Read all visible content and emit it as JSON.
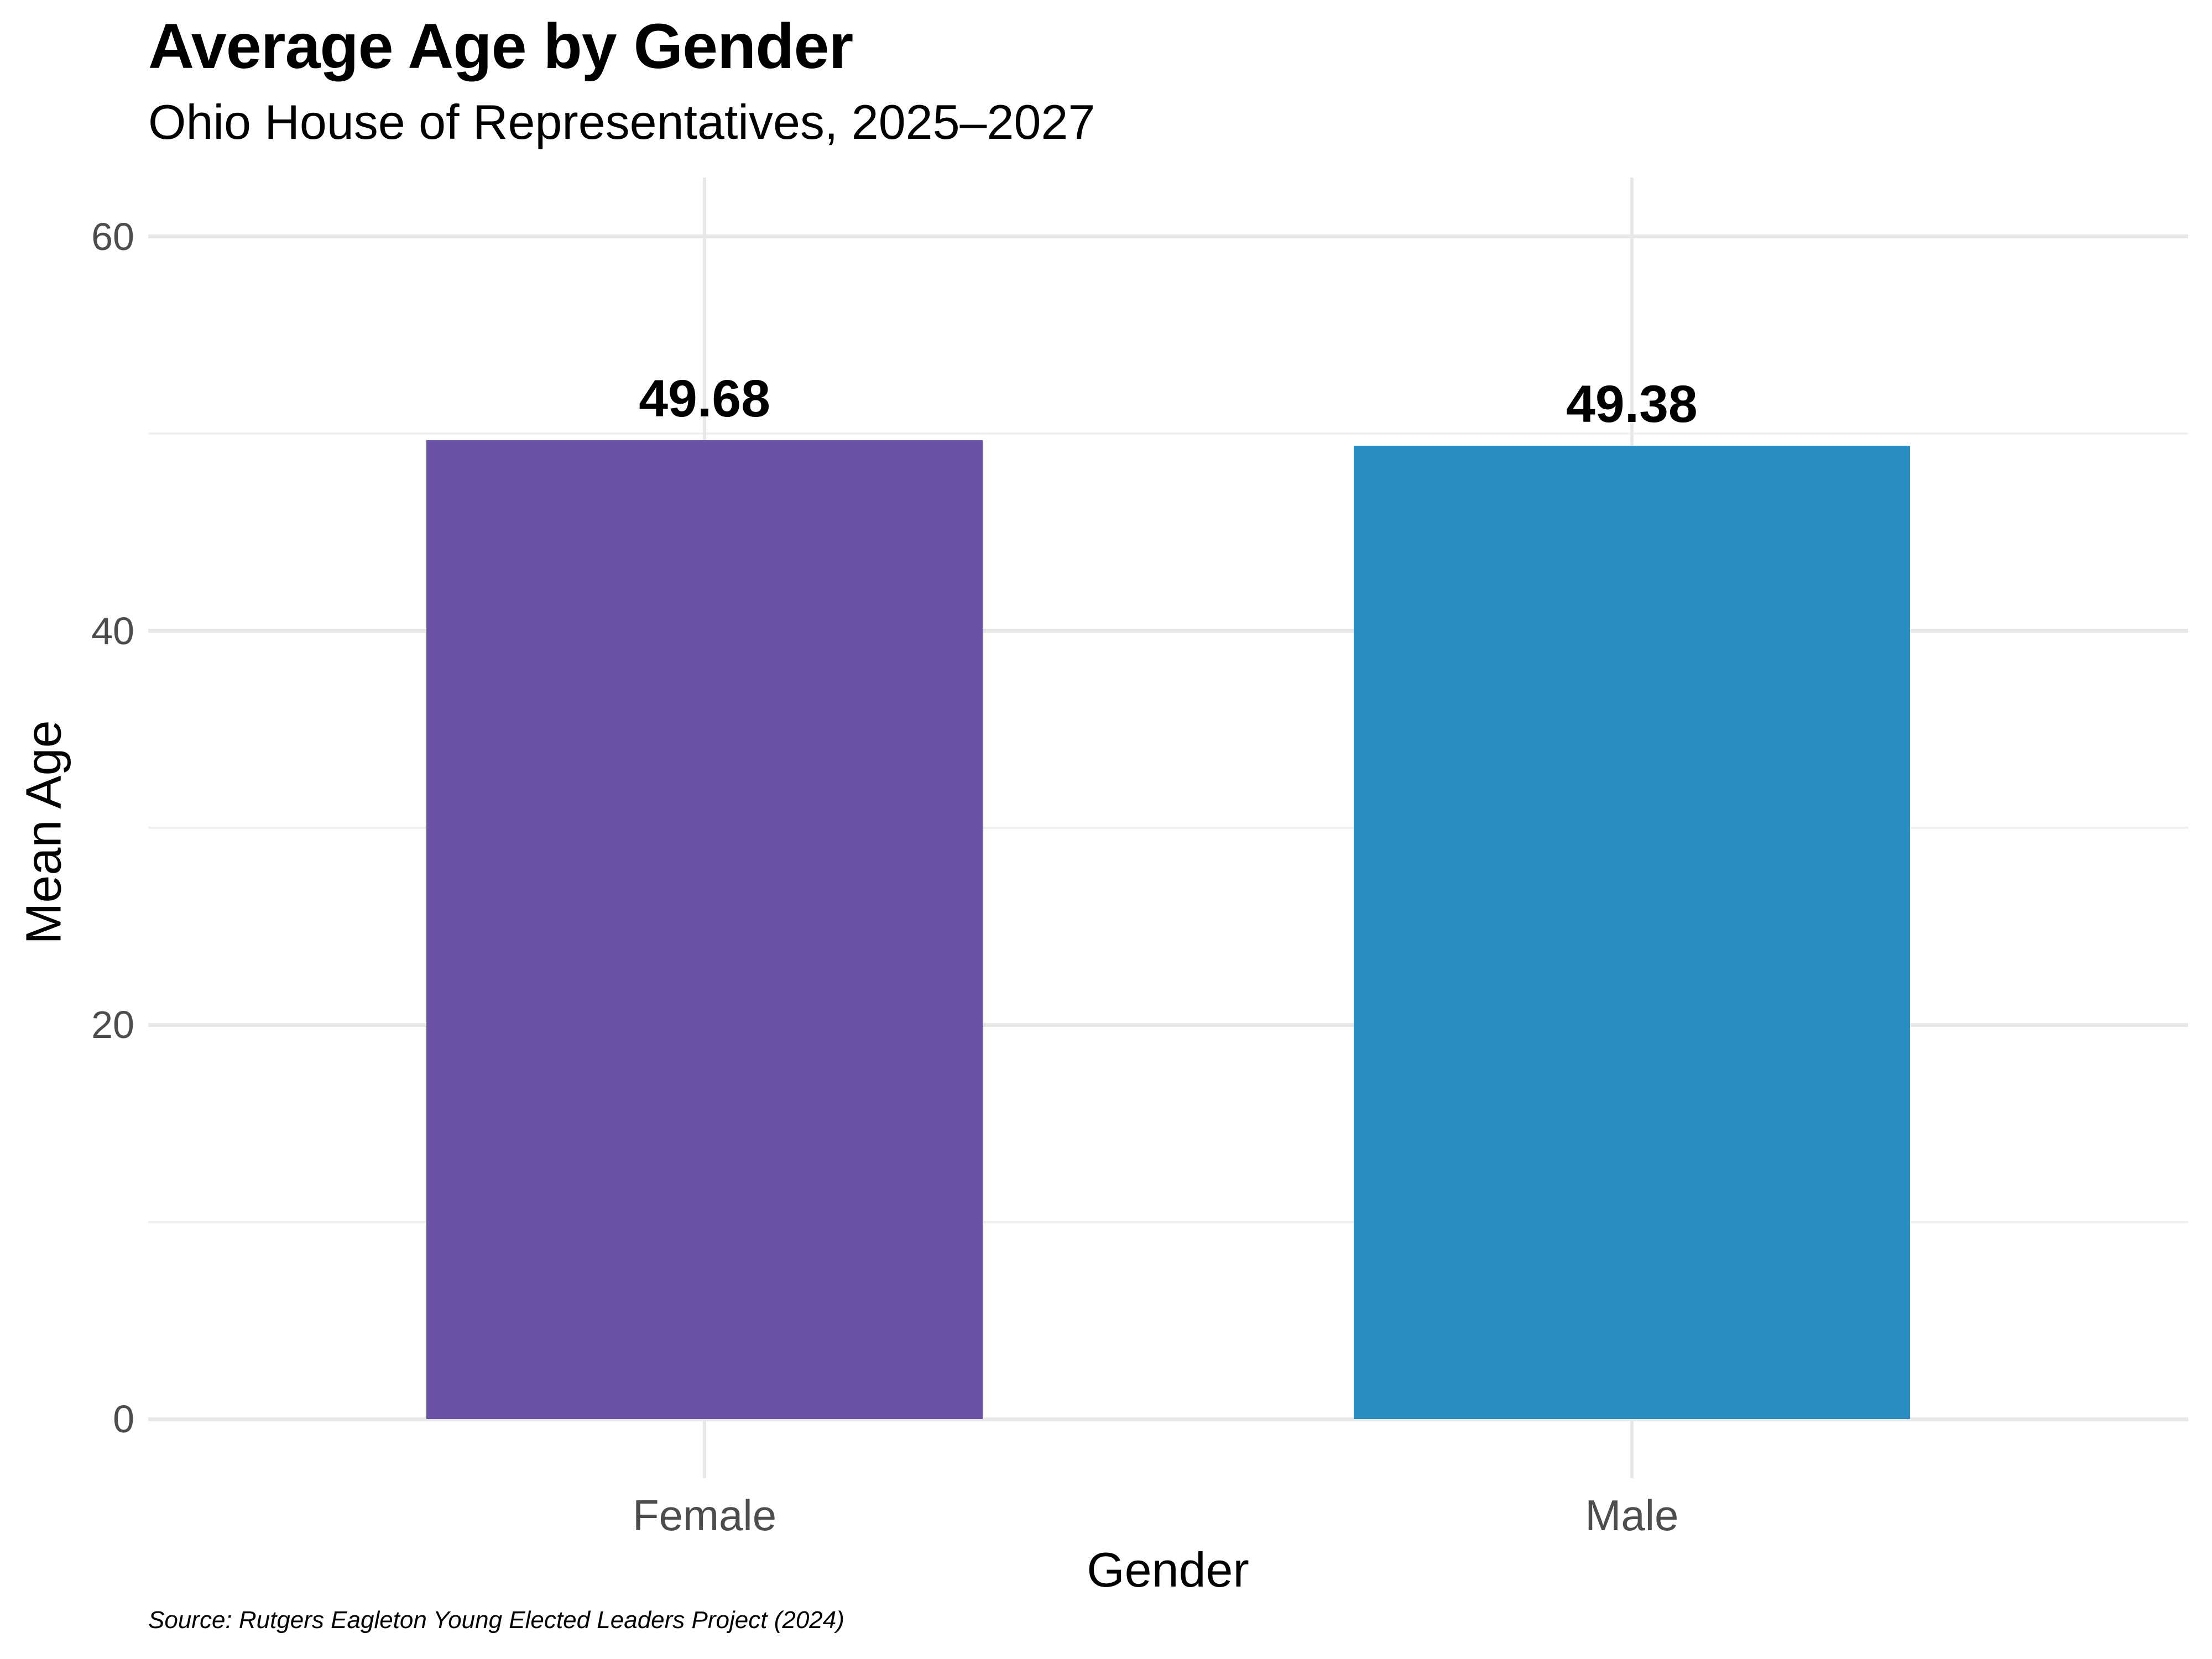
{
  "chart_data": {
    "type": "bar",
    "title": "Average Age by Gender",
    "subtitle": "Ohio House of Representatives, 2025–2027",
    "xlabel": "Gender",
    "ylabel": "Mean Age",
    "caption": "Source: Rutgers Eagleton Young Elected Leaders Project (2024)",
    "categories": [
      "Female",
      "Male"
    ],
    "values": [
      49.68,
      49.38
    ],
    "value_labels": [
      "49.68",
      "49.38"
    ],
    "series": [
      {
        "name": "Mean Age",
        "values": [
          49.68,
          49.38
        ]
      }
    ],
    "bar_colors": [
      "#6a52a8",
      "#2b8dc1"
    ],
    "ylim": [
      0,
      60
    ],
    "yticks": [
      0,
      20,
      40,
      60
    ],
    "yticks_minor": [
      10,
      30,
      50
    ],
    "grid": {
      "horizontal_major": true,
      "horizontal_minor": true,
      "vertical_at_categories": true
    },
    "legend": "none",
    "colors": {
      "background": "#ffffff",
      "grid_major": "#e8e8e8",
      "grid_minor": "#f1f1f1",
      "tick_label": "#4d4d4d",
      "text": "#000000"
    }
  }
}
